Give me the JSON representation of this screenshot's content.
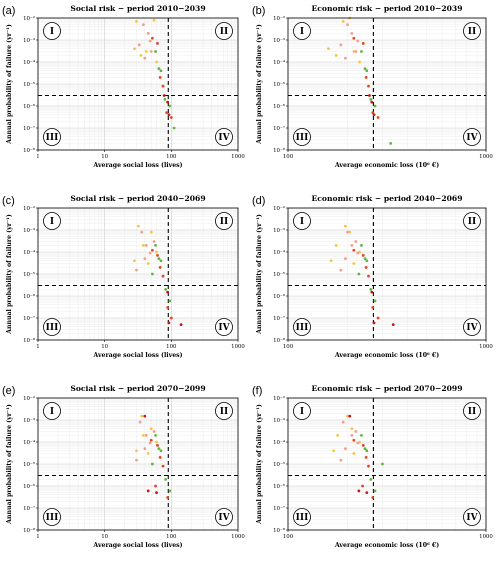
{
  "chart_data": [
    {
      "panel": "(a)",
      "type": "scatter",
      "title": "Social risk − period 2010−2039",
      "xlabel": "Average social loss (lives)",
      "ylabel": "Annual probability of failure (yr⁻¹)",
      "x_scale": "log",
      "y_scale": "log",
      "xlim": [
        1,
        1000
      ],
      "ylim": [
        1e-08,
        0.01
      ],
      "x_ticks": [
        "1",
        "10",
        "100",
        "1000"
      ],
      "y_ticks": [
        "10⁻²",
        "10⁻³",
        "10⁻⁴",
        "10⁻⁵",
        "10⁻⁶",
        "10⁻⁷",
        "10⁻⁸"
      ],
      "threshold_x": 90,
      "threshold_y": 3e-06,
      "quadrants": [
        "I",
        "II",
        "III",
        "IV"
      ],
      "series": [
        {
          "color": "#f5c542",
          "points": [
            [
              30,
              0.007
            ],
            [
              55,
              0.008
            ],
            [
              35,
              0.0002
            ],
            [
              42,
              0.0003
            ],
            [
              60,
              0.0001
            ],
            [
              28,
              0.0004
            ]
          ]
        },
        {
          "color": "#f29c8a",
          "points": [
            [
              38,
              0.005
            ],
            [
              45,
              0.002
            ],
            [
              50,
              0.0003
            ],
            [
              33,
              0.0006
            ],
            [
              48,
              0.0009
            ],
            [
              40,
              0.00015
            ]
          ]
        },
        {
          "color": "#5cb83a",
          "points": [
            [
              58,
              0.0003
            ],
            [
              65,
              5e-05
            ],
            [
              80,
              2e-06
            ],
            [
              95,
              1e-06
            ],
            [
              70,
              4e-05
            ],
            [
              110,
              1e-07
            ]
          ]
        },
        {
          "color": "#e8431f",
          "points": [
            [
              52,
              0.0012
            ],
            [
              62,
              0.0007
            ],
            [
              75,
              8e-06
            ],
            [
              85,
              5e-07
            ],
            [
              100,
              3e-07
            ],
            [
              68,
              2e-05
            ]
          ]
        },
        {
          "color": "#c9131b",
          "points": [
            [
              88,
              1.5e-06
            ],
            [
              92,
              4e-07
            ],
            [
              78,
              3e-06
            ]
          ]
        }
      ]
    },
    {
      "panel": "(b)",
      "type": "scatter",
      "title": "Economic risk − period 2010−2039",
      "xlabel": "Average economic loss (10⁶ €)",
      "ylabel": "Annual probability of failure (yr⁻¹)",
      "x_scale": "log",
      "y_scale": "log",
      "xlim": [
        100,
        1000
      ],
      "ylim": [
        1e-08,
        0.01
      ],
      "x_ticks": [
        "100",
        "1000"
      ],
      "y_ticks": [
        "10⁻²",
        "10⁻³",
        "10⁻⁴",
        "10⁻⁵",
        "10⁻⁶",
        "10⁻⁷",
        "10⁻⁸"
      ],
      "threshold_x": 270,
      "threshold_y": 3e-06,
      "quadrants": [
        "I",
        "II",
        "III",
        "IV"
      ],
      "series": [
        {
          "color": "#f5c542",
          "points": [
            [
              190,
              0.007
            ],
            [
              205,
              0.01
            ],
            [
              175,
              0.0002
            ],
            [
              215,
              0.0003
            ],
            [
              230,
              0.0001
            ],
            [
              160,
              0.0004
            ]
          ]
        },
        {
          "color": "#f29c8a",
          "points": [
            [
              200,
              0.005
            ],
            [
              210,
              0.002
            ],
            [
              220,
              0.0003
            ],
            [
              185,
              0.0006
            ],
            [
              225,
              0.0009
            ],
            [
              195,
              0.00015
            ]
          ]
        },
        {
          "color": "#5cb83a",
          "points": [
            [
              235,
              0.0003
            ],
            [
              245,
              5e-05
            ],
            [
              262,
              2e-06
            ],
            [
              275,
              1e-06
            ],
            [
              250,
              4e-05
            ],
            [
              330,
              2e-08
            ]
          ]
        },
        {
          "color": "#e8431f",
          "points": [
            [
              215,
              0.0012
            ],
            [
              240,
              0.0007
            ],
            [
              255,
              8e-06
            ],
            [
              268,
              5e-07
            ],
            [
              285,
              3e-07
            ],
            [
              248,
              2e-05
            ]
          ]
        },
        {
          "color": "#c9131b",
          "points": [
            [
              265,
              1.5e-06
            ],
            [
              272,
              4e-07
            ],
            [
              258,
              3e-06
            ]
          ]
        }
      ]
    },
    {
      "panel": "(c)",
      "type": "scatter",
      "title": "Social risk − period 2040−2069",
      "xlabel": "Average social loss (lives)",
      "ylabel": "Annual probability of failure (yr⁻¹)",
      "x_scale": "log",
      "y_scale": "log",
      "xlim": [
        1,
        1000
      ],
      "ylim": [
        1e-08,
        0.01
      ],
      "x_ticks": [
        "1",
        "10",
        "100",
        "1000"
      ],
      "y_ticks": [
        "10⁻²",
        "10⁻³",
        "10⁻⁴",
        "10⁻⁵",
        "10⁻⁶",
        "10⁻⁷",
        "10⁻⁸"
      ],
      "threshold_x": 90,
      "threshold_y": 3e-06,
      "quadrants": [
        "I",
        "II",
        "III",
        "IV"
      ],
      "series": [
        {
          "color": "#f5c542",
          "points": [
            [
              32,
              0.0015
            ],
            [
              50,
              0.0008
            ],
            [
              38,
              0.0002
            ],
            [
              45,
              3e-05
            ],
            [
              60,
              0.0001
            ],
            [
              28,
              4e-05
            ]
          ]
        },
        {
          "color": "#f29c8a",
          "points": [
            [
              36,
              0.0008
            ],
            [
              42,
              0.0002
            ],
            [
              55,
              0.0003
            ],
            [
              30,
              1.5e-05
            ],
            [
              48,
              9e-05
            ],
            [
              40,
              5e-05
            ]
          ]
        },
        {
          "color": "#5cb83a",
          "points": [
            [
              58,
              0.0002
            ],
            [
              65,
              5e-05
            ],
            [
              82,
              2e-06
            ],
            [
              95,
              6e-07
            ],
            [
              70,
              4e-05
            ],
            [
              52,
              1e-05
            ]
          ]
        },
        {
          "color": "#e8431f",
          "points": [
            [
              52,
              0.00012
            ],
            [
              62,
              7e-05
            ],
            [
              75,
              8e-06
            ],
            [
              88,
              3e-07
            ],
            [
              100,
              1e-07
            ],
            [
              68,
              2e-05
            ]
          ]
        },
        {
          "color": "#c9131b",
          "points": [
            [
              88,
              1.5e-06
            ],
            [
              92,
              6e-08
            ],
            [
              140,
              5e-08
            ]
          ]
        }
      ]
    },
    {
      "panel": "(d)",
      "type": "scatter",
      "title": "Economic risk − period 2040−2069",
      "xlabel": "Average economic loss (10⁶ €)",
      "ylabel": "Annual probability of failure (yr⁻¹)",
      "x_scale": "log",
      "y_scale": "log",
      "xlim": [
        100,
        1000
      ],
      "ylim": [
        1e-08,
        0.01
      ],
      "x_ticks": [
        "100",
        "1000"
      ],
      "y_ticks": [
        "10⁻²",
        "10⁻³",
        "10⁻⁴",
        "10⁻⁵",
        "10⁻⁶",
        "10⁻⁷",
        "10⁻⁸"
      ],
      "threshold_x": 270,
      "threshold_y": 3e-06,
      "quadrants": [
        "I",
        "II",
        "III",
        "IV"
      ],
      "series": [
        {
          "color": "#f5c542",
          "points": [
            [
              195,
              0.0015
            ],
            [
              205,
              0.0008
            ],
            [
              175,
              0.0002
            ],
            [
              215,
              3e-05
            ],
            [
              230,
              0.0001
            ],
            [
              165,
              4e-05
            ]
          ]
        },
        {
          "color": "#f29c8a",
          "points": [
            [
              200,
              0.0008
            ],
            [
              210,
              0.0002
            ],
            [
              220,
              0.0003
            ],
            [
              185,
              1.5e-05
            ],
            [
              225,
              9e-05
            ],
            [
              195,
              5e-05
            ]
          ]
        },
        {
          "color": "#5cb83a",
          "points": [
            [
              235,
              0.0002
            ],
            [
              245,
              5e-05
            ],
            [
              262,
              2e-06
            ],
            [
              275,
              6e-07
            ],
            [
              250,
              4e-05
            ],
            [
              228,
              1e-05
            ]
          ]
        },
        {
          "color": "#e8431f",
          "points": [
            [
              215,
              0.00012
            ],
            [
              240,
              7e-05
            ],
            [
              255,
              8e-06
            ],
            [
              268,
              3e-07
            ],
            [
              285,
              1e-07
            ],
            [
              248,
              2e-05
            ]
          ]
        },
        {
          "color": "#c9131b",
          "points": [
            [
              265,
              1.5e-06
            ],
            [
              272,
              6e-08
            ],
            [
              340,
              5e-08
            ]
          ]
        }
      ]
    },
    {
      "panel": "(e)",
      "type": "scatter",
      "title": "Social risk − period 2070−2099",
      "xlabel": "Average social loss (lives)",
      "ylabel": "Annual probability of failure (yr⁻¹)",
      "x_scale": "log",
      "y_scale": "log",
      "xlim": [
        1,
        1000
      ],
      "ylim": [
        1e-08,
        0.01
      ],
      "x_ticks": [
        "1",
        "10",
        "100",
        "1000"
      ],
      "y_ticks": [
        "10⁻²",
        "10⁻³",
        "10⁻⁴",
        "10⁻⁵",
        "10⁻⁶",
        "10⁻⁷",
        "10⁻⁸"
      ],
      "threshold_x": 90,
      "threshold_y": 3e-06,
      "quadrants": [
        "I",
        "II",
        "III",
        "IV"
      ],
      "series": [
        {
          "color": "#f5c542",
          "points": [
            [
              36,
              0.0015
            ],
            [
              50,
              0.0004
            ],
            [
              38,
              0.0002
            ],
            [
              45,
              3e-05
            ],
            [
              60,
              0.0001
            ],
            [
              30,
              4e-05
            ]
          ]
        },
        {
          "color": "#f29c8a",
          "points": [
            [
              34,
              0.0008
            ],
            [
              42,
              0.0002
            ],
            [
              55,
              0.0003
            ],
            [
              30,
              1.5e-05
            ],
            [
              48,
              9e-05
            ],
            [
              40,
              5e-05
            ]
          ]
        },
        {
          "color": "#5cb83a",
          "points": [
            [
              58,
              0.0002
            ],
            [
              65,
              5e-05
            ],
            [
              82,
              2e-06
            ],
            [
              95,
              6e-07
            ],
            [
              70,
              4e-05
            ],
            [
              52,
              1e-05
            ]
          ]
        },
        {
          "color": "#e8431f",
          "points": [
            [
              50,
              0.00012
            ],
            [
              62,
              7e-05
            ],
            [
              75,
              8e-06
            ],
            [
              88,
              3e-07
            ],
            [
              58,
              1e-06
            ],
            [
              68,
              2e-05
            ]
          ]
        },
        {
          "color": "#c9131b",
          "points": [
            [
              40,
              0.0015
            ],
            [
              45,
              6e-07
            ],
            [
              60,
              5e-07
            ]
          ]
        }
      ]
    },
    {
      "panel": "(f)",
      "type": "scatter",
      "title": "Economic risk − period 2070−2099",
      "xlabel": "Average economic loss (10⁶ €)",
      "ylabel": "Annual probability of failure (yr⁻¹)",
      "x_scale": "log",
      "y_scale": "log",
      "xlim": [
        100,
        1000
      ],
      "ylim": [
        1e-08,
        0.01
      ],
      "x_ticks": [
        "100",
        "1000"
      ],
      "y_ticks": [
        "10⁻²",
        "10⁻³",
        "10⁻⁴",
        "10⁻⁵",
        "10⁻⁶",
        "10⁻⁷",
        "10⁻⁸"
      ],
      "threshold_x": 270,
      "threshold_y": 3e-06,
      "quadrants": [
        "I",
        "II",
        "III",
        "IV"
      ],
      "series": [
        {
          "color": "#f5c542",
          "points": [
            [
              200,
              0.0015
            ],
            [
              210,
              0.0004
            ],
            [
              178,
              0.0002
            ],
            [
              215,
              3e-05
            ],
            [
              230,
              0.0001
            ],
            [
              170,
              4e-05
            ]
          ]
        },
        {
          "color": "#f29c8a",
          "points": [
            [
              190,
              0.0008
            ],
            [
              210,
              0.0002
            ],
            [
              220,
              0.0003
            ],
            [
              185,
              1.5e-05
            ],
            [
              225,
              9e-05
            ],
            [
              195,
              5e-05
            ]
          ]
        },
        {
          "color": "#5cb83a",
          "points": [
            [
              235,
              0.0002
            ],
            [
              245,
              5e-05
            ],
            [
              262,
              2e-06
            ],
            [
              275,
              6e-07
            ],
            [
              250,
              4e-05
            ],
            [
              300,
              1e-05
            ]
          ]
        },
        {
          "color": "#e8431f",
          "points": [
            [
              215,
              0.00012
            ],
            [
              240,
              7e-05
            ],
            [
              255,
              8e-06
            ],
            [
              268,
              3e-07
            ],
            [
              238,
              1e-06
            ],
            [
              248,
              2e-05
            ]
          ]
        },
        {
          "color": "#c9131b",
          "points": [
            [
              205,
              0.0015
            ],
            [
              228,
              6e-07
            ],
            [
              250,
              5e-07
            ]
          ]
        }
      ]
    }
  ]
}
